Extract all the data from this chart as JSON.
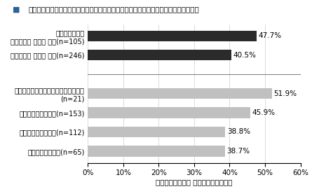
{
  "title": "家族の緑や環境問題に関するかかわりと省エネルギー行動・環境行動実行割合（平均）",
  "xlabel": "省エネルギー行動 環境行動の実行割合",
  "categories": [
    "子どもと一緒に\n緑の手入れ 水やり あり(n=105)",
    "緑の手入れ 水やり なし(n=246)",
    "",
    "子どもと環境問題等をよく話題にする\n(n=21)",
    "ときどき話題にする(n=153)",
    "あまり話題にしない(n=112)",
    "全く話題にしない(n=65)"
  ],
  "values": [
    47.7,
    40.5,
    0,
    51.9,
    45.9,
    38.8,
    38.7
  ],
  "colors": [
    "#2b2b2b",
    "#2b2b2b",
    "#ffffff",
    "#c0c0c0",
    "#c0c0c0",
    "#c0c0c0",
    "#c0c0c0"
  ],
  "value_labels": [
    "47.7%",
    "40.5%",
    "",
    "51.9%",
    "45.9%",
    "38.8%",
    "38.7%"
  ],
  "xlim": [
    0,
    60
  ],
  "xticks": [
    0,
    10,
    20,
    30,
    40,
    50,
    60
  ],
  "xtick_labels": [
    "0%",
    "10%",
    "20%",
    "30%",
    "40%",
    "50%",
    "60%"
  ],
  "title_color": "#1f4e79",
  "legend_square_color": "#2e6099",
  "bar_height": 0.55,
  "fontsize_title": 7.5,
  "fontsize_label": 7.0,
  "fontsize_value": 7.5,
  "fontsize_xlabel": 7.5,
  "fontsize_xtick": 7.5
}
